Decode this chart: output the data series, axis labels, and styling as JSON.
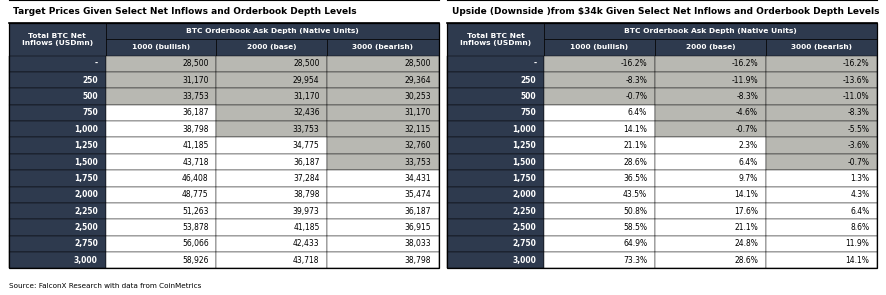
{
  "title1": "Target Prices Given Select Net Inflows and Orderbook Depth Levels",
  "title2": "Upside (Downside )from $34k Given Select Net Inflows and Orderbook Depth Levels",
  "source": "Source: FalconX Research with data from CoinMetrics",
  "col_header1": "Total BTC Net\nInflows (USDmn)",
  "col_header2": "BTC Orderbook Ask Depth (Native Units)",
  "sub_headers": [
    "1000 (bullish)",
    "2000 (base)",
    "3000 (bearish)"
  ],
  "row_labels": [
    "-",
    "250",
    "500",
    "750",
    "1,000",
    "1,250",
    "1,500",
    "1,750",
    "2,000",
    "2,250",
    "2,500",
    "2,750",
    "3,000"
  ],
  "table1_data": [
    [
      "28,500",
      "28,500",
      "28,500"
    ],
    [
      "31,170",
      "29,954",
      "29,364"
    ],
    [
      "33,753",
      "31,170",
      "30,253"
    ],
    [
      "36,187",
      "32,436",
      "31,170"
    ],
    [
      "38,798",
      "33,753",
      "32,115"
    ],
    [
      "41,185",
      "34,775",
      "32,760"
    ],
    [
      "43,718",
      "36,187",
      "33,753"
    ],
    [
      "46,408",
      "37,284",
      "34,431"
    ],
    [
      "48,775",
      "38,798",
      "35,474"
    ],
    [
      "51,263",
      "39,973",
      "36,187"
    ],
    [
      "53,878",
      "41,185",
      "36,915"
    ],
    [
      "56,066",
      "42,433",
      "38,033"
    ],
    [
      "58,926",
      "43,718",
      "38,798"
    ]
  ],
  "table2_data": [
    [
      "-16.2%",
      "-16.2%",
      "-16.2%"
    ],
    [
      "-8.3%",
      "-11.9%",
      "-13.6%"
    ],
    [
      "-0.7%",
      "-8.3%",
      "-11.0%"
    ],
    [
      "6.4%",
      "-4.6%",
      "-8.3%"
    ],
    [
      "14.1%",
      "-0.7%",
      "-5.5%"
    ],
    [
      "21.1%",
      "2.3%",
      "-3.6%"
    ],
    [
      "28.6%",
      "6.4%",
      "-0.7%"
    ],
    [
      "36.5%",
      "9.7%",
      "1.3%"
    ],
    [
      "43.5%",
      "14.1%",
      "4.3%"
    ],
    [
      "50.8%",
      "17.6%",
      "6.4%"
    ],
    [
      "58.5%",
      "21.1%",
      "8.6%"
    ],
    [
      "64.9%",
      "24.8%",
      "11.9%"
    ],
    [
      "73.3%",
      "28.6%",
      "14.1%"
    ]
  ],
  "color_dark": "#2E3A4E",
  "color_light_gray": "#B8B8B2",
  "color_white": "#FFFFFF",
  "shade_col_rows": {
    "0": [
      0,
      1,
      2
    ],
    "1": [
      0,
      1,
      2,
      3,
      4
    ],
    "2": [
      0,
      1,
      2,
      3,
      4,
      5,
      6
    ]
  },
  "fig_width": 8.86,
  "fig_height": 2.95,
  "title_fontsize": 6.5,
  "header_fontsize": 5.6,
  "data_fontsize": 5.5
}
